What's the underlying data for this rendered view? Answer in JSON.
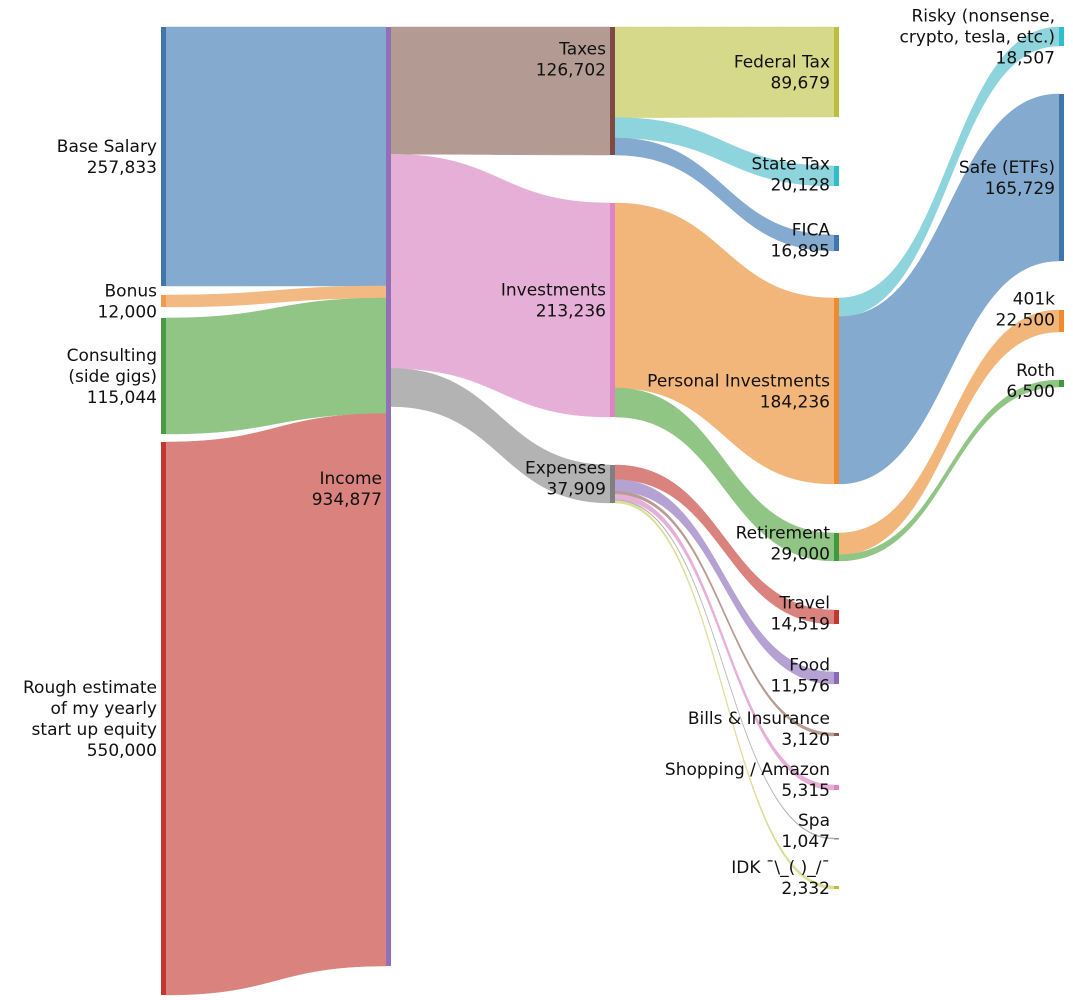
{
  "chart_data": {
    "type": "sankey",
    "title": "",
    "nodes": [
      {
        "id": "base_salary",
        "name": "Base Salary",
        "value_label": "257,833",
        "value": 257833,
        "color": "#3f76ab",
        "column": 0
      },
      {
        "id": "bonus",
        "name": "Bonus",
        "value_label": "12,000",
        "value": 12000,
        "color": "#f09a4e",
        "column": 0
      },
      {
        "id": "consulting",
        "name": "Consulting\n(side gigs)",
        "value_label": "115,044",
        "value": 115044,
        "color": "#4a9a45",
        "column": 0
      },
      {
        "id": "equity",
        "name": "Rough estimate\nof my yearly\nstart up equity",
        "value_label": "550,000",
        "value": 550000,
        "color": "#c2382f",
        "column": 0
      },
      {
        "id": "income",
        "name": "Income",
        "value_label": "934,877",
        "value": 934877,
        "color": "#9170b8",
        "column": 1
      },
      {
        "id": "taxes",
        "name": "Taxes",
        "value_label": "126,702",
        "value": 126702,
        "color": "#7d4b43",
        "column": 2
      },
      {
        "id": "investments",
        "name": "Investments",
        "value_label": "213,236",
        "value": 213236,
        "color": "#dd84c3",
        "column": 2
      },
      {
        "id": "expenses",
        "name": "Expenses",
        "value_label": "37,909",
        "value": 37909,
        "color": "#7f7f7f",
        "column": 2
      },
      {
        "id": "federal_tax",
        "name": "Federal Tax",
        "value_label": "89,679",
        "value": 89679,
        "color": "#bcbd3a",
        "column": 3
      },
      {
        "id": "state_tax",
        "name": "State Tax",
        "value_label": "20,128",
        "value": 20128,
        "color": "#2fbfcc",
        "column": 3
      },
      {
        "id": "fica",
        "name": "FICA",
        "value_label": "16,895",
        "value": 16895,
        "color": "#3f76ab",
        "column": 3
      },
      {
        "id": "personal_inv",
        "name": "Personal Investments",
        "value_label": "184,236",
        "value": 184236,
        "color": "#ef8a2e",
        "column": 3
      },
      {
        "id": "retirement",
        "name": "Retirement",
        "value_label": "29,000",
        "value": 29000,
        "color": "#3e9a3a",
        "column": 3
      },
      {
        "id": "travel",
        "name": "Travel",
        "value_label": "14,519",
        "value": 14519,
        "color": "#c2382f",
        "column": 3
      },
      {
        "id": "food",
        "name": "Food",
        "value_label": "11,576",
        "value": 11576,
        "color": "#8a69b5",
        "column": 3
      },
      {
        "id": "bills",
        "name": "Bills & Insurance",
        "value_label": "3,120",
        "value": 3120,
        "color": "#8b5a4f",
        "column": 3
      },
      {
        "id": "shopping",
        "name": "Shopping / Amazon",
        "value_label": "5,315",
        "value": 5315,
        "color": "#dd84c3",
        "column": 3
      },
      {
        "id": "spa",
        "name": "Spa",
        "value_label": "1,047",
        "value": 1047,
        "color": "#8c8c8c",
        "column": 3
      },
      {
        "id": "idk",
        "name": "IDK ¯\\_( )_/¯",
        "value_label": "2,332",
        "value": 2332,
        "color": "#bcbd3a",
        "column": 3
      },
      {
        "id": "risky",
        "name": "Risky (nonsense,\ncrypto, tesla, etc.)",
        "value_label": "18,507",
        "value": 18507,
        "color": "#2fbfcc",
        "column": 4
      },
      {
        "id": "safe",
        "name": "Safe (ETFs)",
        "value_label": "165,729",
        "value": 165729,
        "color": "#3f76ab",
        "column": 4
      },
      {
        "id": "k401",
        "name": "401k",
        "value_label": "22,500",
        "value": 22500,
        "color": "#ef8a2e",
        "column": 4
      },
      {
        "id": "roth",
        "name": "Roth",
        "value_label": "6,500",
        "value": 6500,
        "color": "#3e9a3a",
        "column": 4
      }
    ],
    "links": [
      {
        "source": "base_salary",
        "target": "income",
        "value": 257833,
        "color": "#85aacf"
      },
      {
        "source": "bonus",
        "target": "income",
        "value": 12000,
        "color": "#f2b982"
      },
      {
        "source": "consulting",
        "target": "income",
        "value": 115044,
        "color": "#91c585"
      },
      {
        "source": "equity",
        "target": "income",
        "value": 550000,
        "color": "#d9827e"
      },
      {
        "source": "income",
        "target": "taxes",
        "value": 126702,
        "color": "#b39b93"
      },
      {
        "source": "income",
        "target": "investments",
        "value": 213236,
        "color": "#e6afd8"
      },
      {
        "source": "income",
        "target": "expenses",
        "value": 37909,
        "color": "#b3b3b3"
      },
      {
        "source": "taxes",
        "target": "federal_tax",
        "value": 89679,
        "color": "#d7d98a"
      },
      {
        "source": "taxes",
        "target": "state_tax",
        "value": 20128,
        "color": "#8ed4dc"
      },
      {
        "source": "taxes",
        "target": "fica",
        "value": 16895,
        "color": "#85aacf"
      },
      {
        "source": "investments",
        "target": "personal_inv",
        "value": 184236,
        "color": "#f2b57a"
      },
      {
        "source": "investments",
        "target": "retirement",
        "value": 29000,
        "color": "#91c585"
      },
      {
        "source": "expenses",
        "target": "travel",
        "value": 14519,
        "color": "#d9827e"
      },
      {
        "source": "expenses",
        "target": "food",
        "value": 11576,
        "color": "#b6a1d3"
      },
      {
        "source": "expenses",
        "target": "bills",
        "value": 3120,
        "color": "#b89b93"
      },
      {
        "source": "expenses",
        "target": "shopping",
        "value": 5315,
        "color": "#e6afd8"
      },
      {
        "source": "expenses",
        "target": "spa",
        "value": 1047,
        "color": "#b3b3b3"
      },
      {
        "source": "expenses",
        "target": "idk",
        "value": 2332,
        "color": "#dddd9a"
      },
      {
        "source": "personal_inv",
        "target": "risky",
        "value": 18507,
        "color": "#8ed4dc"
      },
      {
        "source": "personal_inv",
        "target": "safe",
        "value": 165729,
        "color": "#85aacf"
      },
      {
        "source": "retirement",
        "target": "k401",
        "value": 22500,
        "color": "#f2b57a"
      },
      {
        "source": "retirement",
        "target": "roth",
        "value": 6500,
        "color": "#91c585"
      }
    ]
  }
}
